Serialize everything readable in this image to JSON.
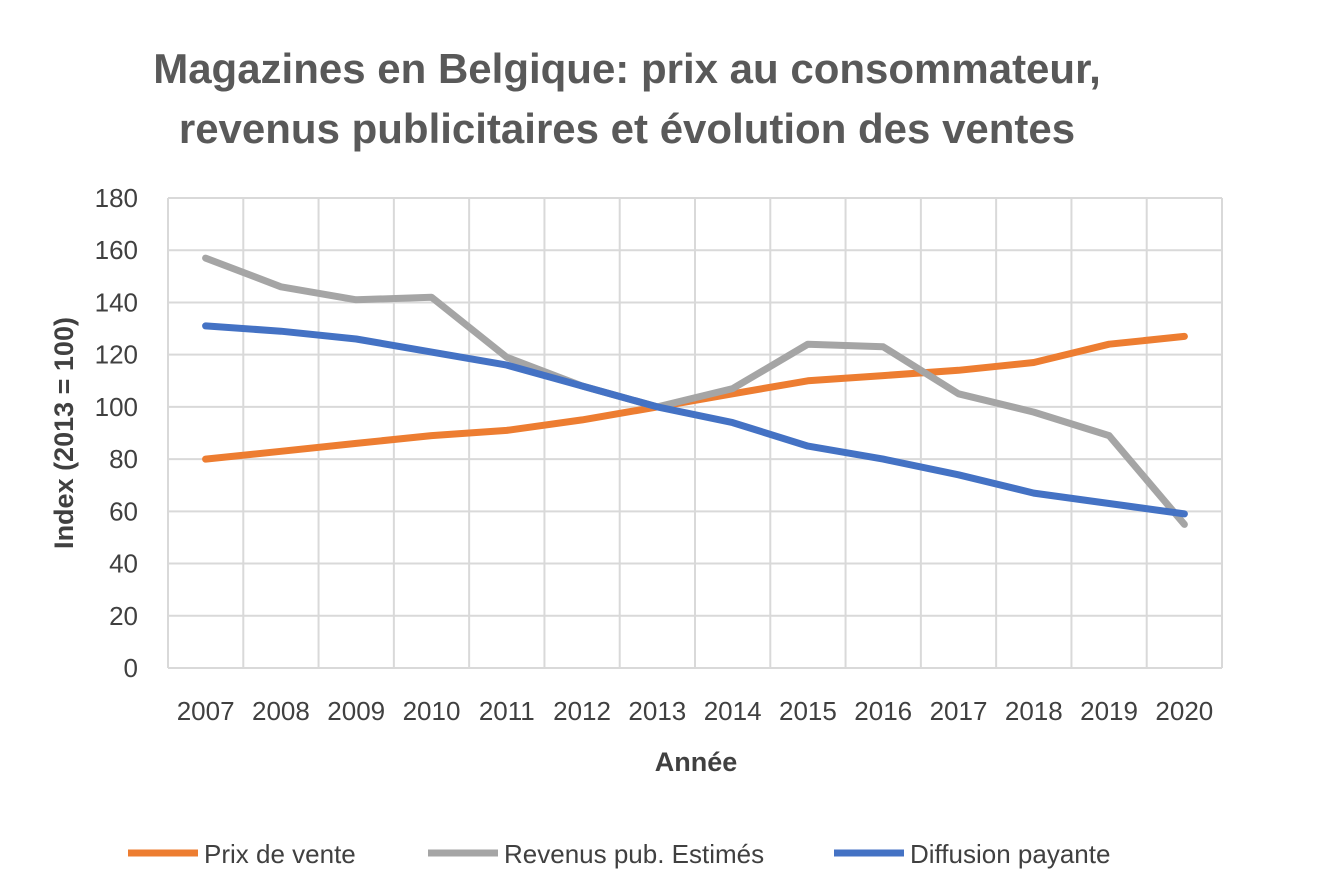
{
  "chart_data": {
    "type": "line",
    "title_lines": [
      "Magazines en Belgique: prix au consommateur,",
      "revenus publicitaires et évolution des ventes"
    ],
    "xlabel": "Année",
    "ylabel": "Index (2013 = 100)",
    "ylim": [
      0,
      180
    ],
    "yticks": [
      0,
      20,
      40,
      60,
      80,
      100,
      120,
      140,
      160,
      180
    ],
    "grid": true,
    "legend_position": "bottom",
    "categories": [
      "2007",
      "2008",
      "2009",
      "2010",
      "2011",
      "2012",
      "2013",
      "2014",
      "2015",
      "2016",
      "2017",
      "2018",
      "2019",
      "2020"
    ],
    "series": [
      {
        "name": "Prix de vente",
        "color": "#ED7D31",
        "values": [
          80,
          83,
          86,
          89,
          91,
          95,
          100,
          105,
          110,
          112,
          114,
          117,
          124,
          127
        ]
      },
      {
        "name": "Revenus pub. Estimés",
        "color": "#A5A5A5",
        "values": [
          157,
          146,
          141,
          142,
          119,
          108,
          100,
          107,
          124,
          123,
          105,
          98,
          89,
          55
        ]
      },
      {
        "name": "Diffusion payante",
        "color": "#4472C4",
        "values": [
          131,
          129,
          126,
          121,
          116,
          108,
          100,
          94,
          85,
          80,
          74,
          67,
          63,
          59
        ]
      }
    ]
  }
}
